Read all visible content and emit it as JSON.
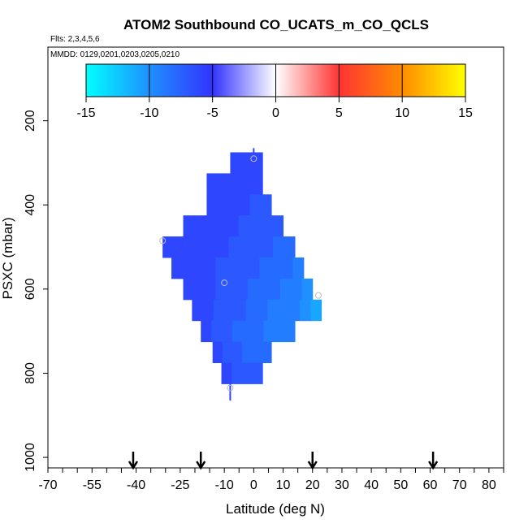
{
  "chart_data": {
    "type": "heatmap",
    "title": "ATOM2 Southbound CO_UCATS_m_CO_QCLS",
    "flights_note": "Flts: 2,3,4,5,6",
    "dates_note": "MMDD: 0129,0201,0203,0205,0210",
    "xlabel": "Latitude (deg N)",
    "ylabel": "PSXC (mbar)",
    "xlim": [
      -70,
      85
    ],
    "ylim": [
      1025,
      25
    ],
    "x_ticks": [
      -70,
      -55,
      -40,
      -25,
      -10,
      0,
      10,
      20,
      30,
      40,
      50,
      60,
      70,
      80
    ],
    "x_minor_step": 5,
    "y_ticks": [
      200,
      400,
      600,
      800,
      1000
    ],
    "colorbar": {
      "min": -15,
      "max": 15,
      "ticks": [
        -15,
        -10,
        -5,
        0,
        5,
        10,
        15
      ],
      "colors": [
        {
          "value": -15,
          "color": "#00ffff"
        },
        {
          "value": -10,
          "color": "#1e90ff"
        },
        {
          "value": -5,
          "color": "#3333ff"
        },
        {
          "value": 0,
          "color": "#ffffff"
        },
        {
          "value": 5,
          "color": "#ff3333"
        },
        {
          "value": 10,
          "color": "#ff8c00"
        },
        {
          "value": 15,
          "color": "#ffff00"
        }
      ]
    },
    "cell_size": {
      "lat": 4,
      "p": 50
    },
    "rows": [
      {
        "p": 300,
        "lat_min": -8,
        "lat_max": 3,
        "v": [
          -6,
          -6,
          -6
        ]
      },
      {
        "p": 350,
        "lat_min": -16,
        "lat_max": 3,
        "v": [
          -6,
          -6,
          -6,
          -6,
          -6
        ]
      },
      {
        "p": 400,
        "lat_min": -16,
        "lat_max": 6,
        "v": [
          -6,
          -6,
          -6,
          -6,
          -7,
          -7
        ]
      },
      {
        "p": 450,
        "lat_min": -24,
        "lat_max": 10,
        "v": [
          -6,
          -6,
          -6,
          -6,
          -6,
          -7,
          -7,
          -7,
          -7
        ]
      },
      {
        "p": 500,
        "lat_min": -31,
        "lat_max": 14,
        "v": [
          -6,
          -6,
          -6,
          -6,
          -6,
          -6,
          -7,
          -7,
          -7,
          -7,
          -8,
          -8
        ]
      },
      {
        "p": 550,
        "lat_min": -28,
        "lat_max": 17,
        "v": [
          -6,
          -6,
          -6,
          -6,
          -7,
          -7,
          -7,
          -7,
          -8,
          -8,
          -8,
          -9
        ]
      },
      {
        "p": 600,
        "lat_min": -24,
        "lat_max": 20,
        "v": [
          -6,
          -6,
          -6,
          -7,
          -7,
          -7,
          -8,
          -8,
          -8,
          -9,
          -9,
          -10
        ]
      },
      {
        "p": 650,
        "lat_min": -21,
        "lat_max": 23,
        "v": [
          -6,
          -6,
          -7,
          -7,
          -7,
          -8,
          -8,
          -9,
          -9,
          -9,
          -10,
          -11
        ]
      },
      {
        "p": 700,
        "lat_min": -18,
        "lat_max": 14,
        "v": [
          -6,
          -7,
          -7,
          -8,
          -8,
          -8,
          -9,
          -9,
          -9
        ]
      },
      {
        "p": 750,
        "lat_min": -14,
        "lat_max": 6,
        "v": [
          -6,
          -7,
          -7,
          -8,
          -8,
          -8
        ]
      },
      {
        "p": 800,
        "lat_min": -11,
        "lat_max": 3,
        "v": [
          -6,
          -7,
          -7,
          -7
        ]
      }
    ],
    "vertical_segments": [
      {
        "lat": 0,
        "p_from": 265,
        "p_to": 320,
        "value": -6
      },
      {
        "lat": -8,
        "p_from": 820,
        "p_to": 865,
        "value": -6
      }
    ],
    "markers": [
      {
        "lat": 0,
        "p": 290
      },
      {
        "lat": -31,
        "p": 485
      },
      {
        "lat": -10,
        "p": 585
      },
      {
        "lat": 22,
        "p": 615
      },
      {
        "lat": -8,
        "p": 835
      }
    ],
    "arrow_lats": [
      -41,
      -18,
      20,
      61
    ]
  }
}
